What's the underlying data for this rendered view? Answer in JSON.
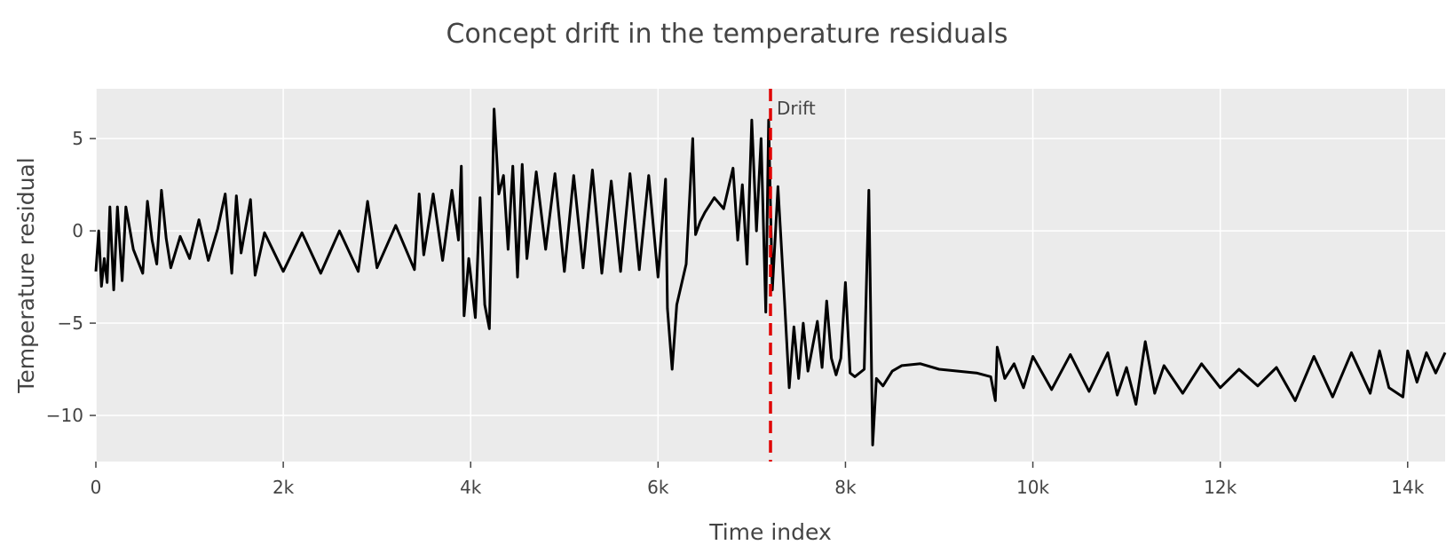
{
  "chart_data": {
    "type": "line",
    "title": "Concept drift in the temperature residuals",
    "xlabel": "Time index",
    "ylabel": "Temperature residual",
    "xlim": [
      0,
      14400
    ],
    "ylim": [
      -12.5,
      7.7
    ],
    "x_ticks": [
      0,
      2000,
      4000,
      6000,
      8000,
      10000,
      12000,
      14000
    ],
    "x_tick_labels": [
      "0",
      "2k",
      "4k",
      "6k",
      "8k",
      "10k",
      "12k",
      "14k"
    ],
    "y_ticks": [
      5,
      0,
      -5,
      -10
    ],
    "y_tick_labels": [
      "5",
      "0",
      "−5",
      "−10"
    ],
    "grid": true,
    "plot_background": "#ebebeb",
    "line_color": "#000000",
    "drift": {
      "x": 7200,
      "label": "Drift",
      "color": "#e00000"
    },
    "series": [
      {
        "points": [
          [
            0,
            -2.2
          ],
          [
            30,
            0.0
          ],
          [
            60,
            -3.0
          ],
          [
            90,
            -1.5
          ],
          [
            120,
            -2.8
          ],
          [
            150,
            1.3
          ],
          [
            190,
            -3.2
          ],
          [
            230,
            1.3
          ],
          [
            280,
            -2.7
          ],
          [
            320,
            1.3
          ],
          [
            400,
            -1.0
          ],
          [
            500,
            -2.3
          ],
          [
            550,
            1.6
          ],
          [
            600,
            -0.5
          ],
          [
            650,
            -1.8
          ],
          [
            700,
            2.2
          ],
          [
            750,
            -0.4
          ],
          [
            800,
            -2.0
          ],
          [
            900,
            -0.3
          ],
          [
            1000,
            -1.5
          ],
          [
            1100,
            0.6
          ],
          [
            1200,
            -1.6
          ],
          [
            1300,
            0.1
          ],
          [
            1380,
            2.0
          ],
          [
            1450,
            -2.3
          ],
          [
            1500,
            1.9
          ],
          [
            1550,
            -1.2
          ],
          [
            1650,
            1.7
          ],
          [
            1700,
            -2.4
          ],
          [
            1800,
            -0.1
          ],
          [
            2000,
            -2.2
          ],
          [
            2200,
            -0.1
          ],
          [
            2400,
            -2.3
          ],
          [
            2600,
            0.0
          ],
          [
            2800,
            -2.2
          ],
          [
            2900,
            1.6
          ],
          [
            3000,
            -2.0
          ],
          [
            3200,
            0.3
          ],
          [
            3400,
            -2.1
          ],
          [
            3450,
            2.0
          ],
          [
            3500,
            -1.3
          ],
          [
            3600,
            2.0
          ],
          [
            3700,
            -1.6
          ],
          [
            3800,
            2.2
          ],
          [
            3870,
            -0.5
          ],
          [
            3900,
            3.5
          ],
          [
            3930,
            -4.6
          ],
          [
            3980,
            -1.5
          ],
          [
            4050,
            -4.7
          ],
          [
            4100,
            1.8
          ],
          [
            4150,
            -4.0
          ],
          [
            4200,
            -5.3
          ],
          [
            4250,
            6.6
          ],
          [
            4300,
            2.0
          ],
          [
            4350,
            3.0
          ],
          [
            4400,
            -1.0
          ],
          [
            4450,
            3.5
          ],
          [
            4500,
            -2.5
          ],
          [
            4550,
            3.6
          ],
          [
            4600,
            -1.5
          ],
          [
            4700,
            3.2
          ],
          [
            4800,
            -1.0
          ],
          [
            4900,
            3.1
          ],
          [
            5000,
            -2.2
          ],
          [
            5100,
            3.0
          ],
          [
            5200,
            -2.0
          ],
          [
            5300,
            3.3
          ],
          [
            5400,
            -2.3
          ],
          [
            5500,
            2.7
          ],
          [
            5600,
            -2.2
          ],
          [
            5700,
            3.1
          ],
          [
            5800,
            -2.1
          ],
          [
            5900,
            3.0
          ],
          [
            6000,
            -2.5
          ],
          [
            6080,
            2.8
          ],
          [
            6100,
            -4.2
          ],
          [
            6150,
            -7.5
          ],
          [
            6200,
            -4.0
          ],
          [
            6300,
            -1.8
          ],
          [
            6370,
            5.0
          ],
          [
            6400,
            -0.2
          ],
          [
            6450,
            0.5
          ],
          [
            6500,
            1.0
          ],
          [
            6600,
            1.8
          ],
          [
            6700,
            1.2
          ],
          [
            6800,
            3.4
          ],
          [
            6850,
            -0.5
          ],
          [
            6900,
            2.5
          ],
          [
            6950,
            -1.8
          ],
          [
            7000,
            6.0
          ],
          [
            7050,
            0.0
          ],
          [
            7100,
            5.0
          ],
          [
            7150,
            -4.4
          ],
          [
            7180,
            6.0
          ],
          [
            7220,
            -3.2
          ],
          [
            7280,
            2.4
          ],
          [
            7350,
            -3.8
          ],
          [
            7400,
            -8.5
          ],
          [
            7450,
            -5.2
          ],
          [
            7500,
            -8.0
          ],
          [
            7550,
            -5.0
          ],
          [
            7600,
            -7.6
          ],
          [
            7700,
            -4.9
          ],
          [
            7750,
            -7.4
          ],
          [
            7800,
            -3.8
          ],
          [
            7850,
            -6.9
          ],
          [
            7900,
            -7.8
          ],
          [
            7950,
            -6.9
          ],
          [
            8000,
            -2.8
          ],
          [
            8050,
            -7.7
          ],
          [
            8100,
            -7.9
          ],
          [
            8200,
            -7.5
          ],
          [
            8250,
            2.2
          ],
          [
            8290,
            -11.6
          ],
          [
            8330,
            -8.0
          ],
          [
            8400,
            -8.4
          ],
          [
            8500,
            -7.6
          ],
          [
            8600,
            -7.3
          ],
          [
            8800,
            -7.2
          ],
          [
            9000,
            -7.5
          ],
          [
            9200,
            -7.6
          ],
          [
            9400,
            -7.7
          ],
          [
            9550,
            -7.9
          ],
          [
            9600,
            -9.2
          ],
          [
            9620,
            -6.3
          ],
          [
            9700,
            -8.0
          ],
          [
            9800,
            -7.2
          ],
          [
            9900,
            -8.5
          ],
          [
            10000,
            -6.8
          ],
          [
            10200,
            -8.6
          ],
          [
            10400,
            -6.7
          ],
          [
            10600,
            -8.7
          ],
          [
            10800,
            -6.6
          ],
          [
            10900,
            -8.9
          ],
          [
            11000,
            -7.4
          ],
          [
            11100,
            -9.4
          ],
          [
            11200,
            -6.0
          ],
          [
            11300,
            -8.8
          ],
          [
            11400,
            -7.3
          ],
          [
            11600,
            -8.8
          ],
          [
            11800,
            -7.2
          ],
          [
            12000,
            -8.5
          ],
          [
            12200,
            -7.5
          ],
          [
            12400,
            -8.4
          ],
          [
            12600,
            -7.4
          ],
          [
            12800,
            -9.2
          ],
          [
            13000,
            -6.8
          ],
          [
            13200,
            -9.0
          ],
          [
            13400,
            -6.6
          ],
          [
            13600,
            -8.8
          ],
          [
            13700,
            -6.5
          ],
          [
            13800,
            -8.5
          ],
          [
            13950,
            -9.0
          ],
          [
            14000,
            -6.5
          ],
          [
            14100,
            -8.2
          ],
          [
            14200,
            -6.6
          ],
          [
            14300,
            -7.7
          ],
          [
            14400,
            -6.6
          ]
        ]
      }
    ]
  }
}
